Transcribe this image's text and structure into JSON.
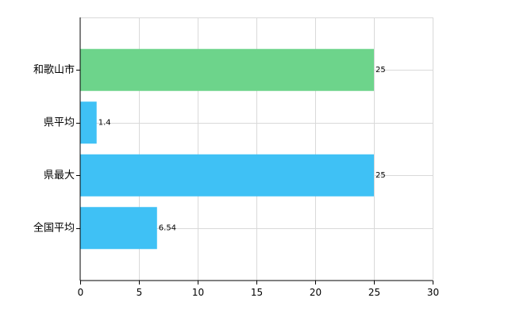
{
  "chart_data": {
    "type": "bar",
    "orientation": "horizontal",
    "categories": [
      "和歌山市",
      "県平均",
      "県最大",
      "全国平均"
    ],
    "values": [
      25,
      1.4,
      25,
      6.54
    ],
    "value_labels": [
      "25",
      "1.4",
      "25",
      "6.54"
    ],
    "bar_colors": [
      "#6dd48b",
      "#3fc1f5",
      "#3fc1f5",
      "#3fc1f5"
    ],
    "xlim": [
      0,
      30
    ],
    "xticks": [
      0,
      5,
      10,
      15,
      20,
      25,
      30
    ],
    "grid": true,
    "title": "",
    "xlabel": "",
    "ylabel": ""
  }
}
